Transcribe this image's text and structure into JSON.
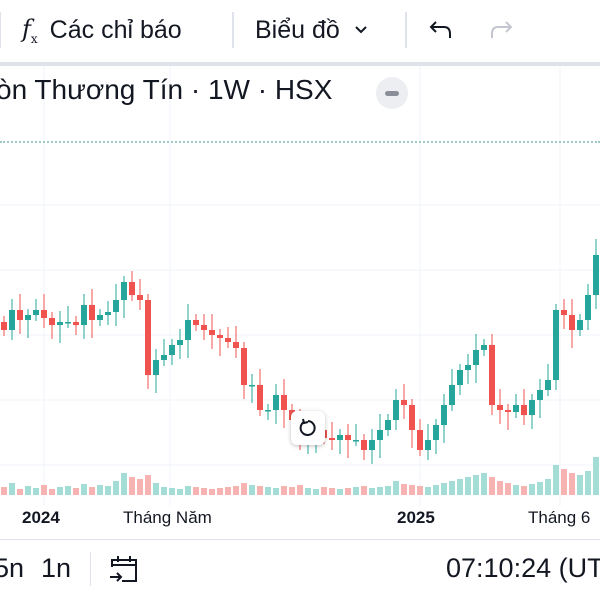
{
  "toolbar": {
    "indicators_label": "Các chỉ báo",
    "chart_type_label": "Biểu đồ",
    "icons": [
      "fx-icon",
      "chevron-down-icon",
      "undo-icon",
      "redo-icon"
    ]
  },
  "legend": {
    "title": "òn Thương Tín · 1W · HSX"
  },
  "colors": {
    "up": "#26a69a",
    "down": "#ef5350",
    "up_vol": "#a3ddd6",
    "down_vol": "#f7b3b1"
  },
  "chart_data": {
    "type": "candlestick",
    "interval": "1W",
    "closes": [
      17,
      19,
      18,
      18.5,
      19,
      18.2,
      17.5,
      17.8,
      17.8,
      17.5,
      19.5,
      18,
      18.5,
      18.8,
      20,
      21.8,
      20.5,
      20,
      12.5,
      14,
      14.5,
      15.5,
      16,
      18,
      17.5,
      17,
      16.5,
      16.2,
      15.8,
      15.2,
      11.5,
      11.5,
      9,
      9,
      10.5,
      9,
      8,
      6,
      6.5,
      7,
      6.2,
      6,
      6.5,
      6,
      6,
      5,
      6,
      7,
      8,
      10,
      9.5,
      7,
      5,
      6,
      7.5,
      9.5,
      11.5,
      13,
      13.5,
      15,
      15.5,
      9.5,
      9,
      8.8,
      9.5,
      8.5,
      10,
      11,
      12,
      19,
      18.5,
      17,
      18,
      20.5,
      24.5
    ],
    "volumes": [
      8,
      12,
      6,
      9,
      7,
      10,
      6,
      8,
      9,
      7,
      11,
      8,
      10,
      9,
      14,
      22,
      18,
      16,
      20,
      12,
      8,
      7,
      6,
      9,
      8,
      7,
      6,
      7,
      8,
      9,
      12,
      10,
      9,
      8,
      7,
      9,
      8,
      10,
      7,
      6,
      8,
      7,
      6,
      7,
      8,
      9,
      7,
      8,
      9,
      14,
      11,
      10,
      9,
      8,
      10,
      12,
      14,
      16,
      18,
      20,
      22,
      18,
      14,
      12,
      10,
      9,
      11,
      13,
      16,
      30,
      26,
      22,
      20,
      24,
      38
    ],
    "x_labels": [
      {
        "text": "2024",
        "bold": true
      },
      {
        "text": "Tháng Năm",
        "bold": false
      },
      {
        "text": "2025",
        "bold": true
      },
      {
        "text": "Tháng 6",
        "bold": false
      }
    ]
  },
  "bottom": {
    "range_5n": "5n",
    "range_1n": "1n",
    "time": "07:10:24 (UT"
  }
}
